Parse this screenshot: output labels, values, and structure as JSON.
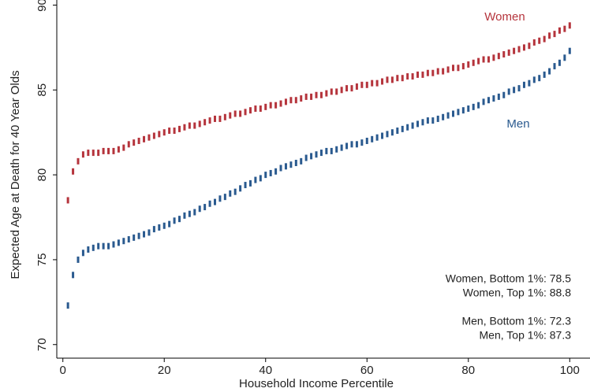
{
  "chart_data": {
    "type": "scatter",
    "x_label": "Household Income Percentile",
    "y_label": "Expected Age at Death for 40 Year Olds",
    "x": [
      1,
      2,
      3,
      4,
      5,
      6,
      7,
      8,
      9,
      10,
      11,
      12,
      13,
      14,
      15,
      16,
      17,
      18,
      19,
      20,
      21,
      22,
      23,
      24,
      25,
      26,
      27,
      28,
      29,
      30,
      31,
      32,
      33,
      34,
      35,
      36,
      37,
      38,
      39,
      40,
      41,
      42,
      43,
      44,
      45,
      46,
      47,
      48,
      49,
      50,
      51,
      52,
      53,
      54,
      55,
      56,
      57,
      58,
      59,
      60,
      61,
      62,
      63,
      64,
      65,
      66,
      67,
      68,
      69,
      70,
      71,
      72,
      73,
      74,
      75,
      76,
      77,
      78,
      79,
      80,
      81,
      82,
      83,
      84,
      85,
      86,
      87,
      88,
      89,
      90,
      91,
      92,
      93,
      94,
      95,
      96,
      97,
      98,
      99,
      100
    ],
    "series": [
      {
        "name": "Women",
        "color": "#b5343c",
        "values": [
          78.5,
          80.2,
          80.8,
          81.2,
          81.3,
          81.3,
          81.3,
          81.4,
          81.4,
          81.4,
          81.5,
          81.6,
          81.8,
          81.9,
          82.0,
          82.1,
          82.2,
          82.3,
          82.4,
          82.5,
          82.6,
          82.6,
          82.7,
          82.8,
          82.9,
          82.9,
          83.0,
          83.1,
          83.2,
          83.3,
          83.3,
          83.4,
          83.5,
          83.6,
          83.6,
          83.7,
          83.8,
          83.9,
          83.9,
          84.0,
          84.1,
          84.1,
          84.2,
          84.3,
          84.4,
          84.4,
          84.5,
          84.6,
          84.6,
          84.7,
          84.7,
          84.8,
          84.9,
          84.9,
          85.0,
          85.1,
          85.1,
          85.2,
          85.3,
          85.3,
          85.4,
          85.4,
          85.5,
          85.6,
          85.6,
          85.7,
          85.7,
          85.8,
          85.8,
          85.9,
          85.9,
          86.0,
          86.0,
          86.1,
          86.1,
          86.2,
          86.3,
          86.3,
          86.4,
          86.5,
          86.6,
          86.7,
          86.8,
          86.8,
          86.9,
          87.0,
          87.1,
          87.2,
          87.3,
          87.4,
          87.5,
          87.6,
          87.8,
          87.9,
          88.0,
          88.2,
          88.3,
          88.5,
          88.6,
          88.8
        ]
      },
      {
        "name": "Men",
        "color": "#2a5a8f",
        "values": [
          72.3,
          74.1,
          75.0,
          75.4,
          75.6,
          75.7,
          75.8,
          75.8,
          75.8,
          75.9,
          76.0,
          76.1,
          76.2,
          76.3,
          76.4,
          76.5,
          76.6,
          76.8,
          76.9,
          77.0,
          77.1,
          77.3,
          77.4,
          77.6,
          77.7,
          77.8,
          78.0,
          78.1,
          78.3,
          78.4,
          78.6,
          78.7,
          78.9,
          79.0,
          79.2,
          79.4,
          79.5,
          79.7,
          79.8,
          80.0,
          80.1,
          80.2,
          80.4,
          80.5,
          80.6,
          80.7,
          80.8,
          81.0,
          81.1,
          81.2,
          81.3,
          81.4,
          81.4,
          81.5,
          81.6,
          81.7,
          81.8,
          81.8,
          81.9,
          82.0,
          82.1,
          82.2,
          82.3,
          82.4,
          82.5,
          82.6,
          82.7,
          82.8,
          82.9,
          83.0,
          83.1,
          83.2,
          83.2,
          83.3,
          83.4,
          83.5,
          83.6,
          83.7,
          83.8,
          83.9,
          84.0,
          84.1,
          84.3,
          84.4,
          84.5,
          84.6,
          84.7,
          84.9,
          85.0,
          85.1,
          85.3,
          85.4,
          85.6,
          85.7,
          85.9,
          86.1,
          86.4,
          86.6,
          86.9,
          87.3
        ]
      }
    ],
    "annotations": [
      "Women, Bottom 1%: 78.5",
      "Women, Top 1%: 88.8",
      "Men, Bottom 1%: 72.3",
      "Men, Top 1%: 87.3"
    ],
    "xlim": [
      -1.2,
      104
    ],
    "xticks": [
      0,
      20,
      40,
      60,
      80,
      100
    ],
    "ylim": [
      69.2,
      90.3
    ],
    "yticks": [
      70,
      75,
      80,
      85,
      90
    ],
    "grid": false
  }
}
